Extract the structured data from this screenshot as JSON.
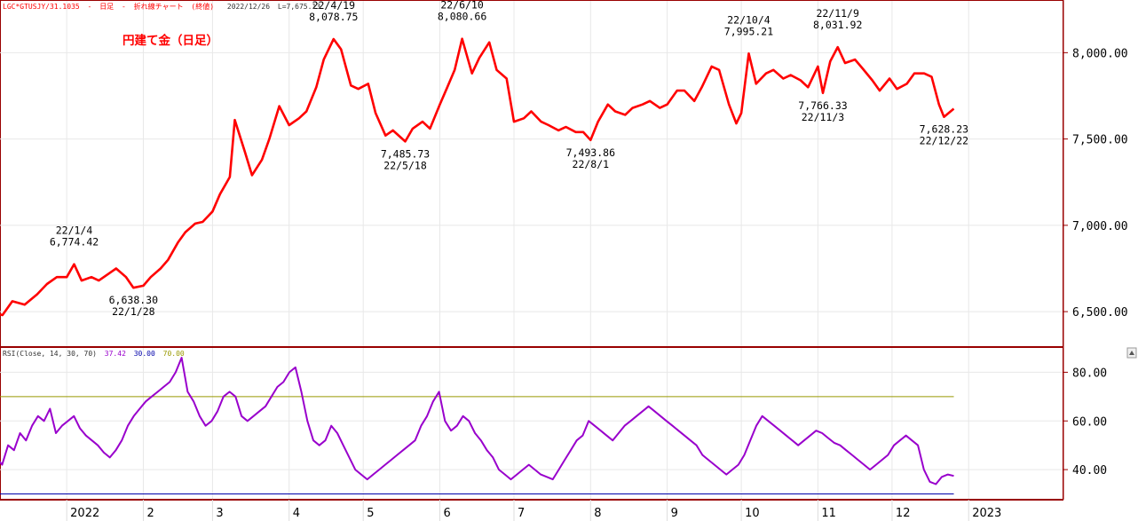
{
  "header": {
    "symbol": "LGC*GTUSJY/31.1035",
    "sep1": "-",
    "period": "日足",
    "sep2": "-",
    "chart_kind": "折れ線チャート",
    "mode": "(終値)",
    "date": "2022/12/26",
    "last": "L=7,675.13"
  },
  "rsi_header": {
    "label": "RSI(Close, 14, 30, 70)",
    "value": "37.42",
    "low": "30.00",
    "high": "70.00"
  },
  "colors": {
    "price_line": "#ff0000",
    "rsi_line": "#9900cc",
    "rsi_high_line": "#999900",
    "rsi_low_line": "#0000aa",
    "frame": "#990000",
    "grid": "#e8e8e8",
    "title": "#ff0000"
  },
  "chart_data": [
    {
      "type": "line",
      "title": "円建て金（日足）",
      "ylabel": "",
      "xlabel": "",
      "ylim": [
        6300,
        8300
      ],
      "grid": true,
      "y_ticks": [
        "6,500.00",
        "7,000.00",
        "7,500.00",
        "8,000.00"
      ],
      "y_tick_values": [
        6500,
        7000,
        7500,
        8000
      ],
      "x_ticks": [
        "2022",
        "2",
        "3",
        "4",
        "5",
        "6",
        "7",
        "8",
        "9",
        "10",
        "11",
        "12",
        "2023"
      ],
      "x_tick_dates": [
        "2022-01-01",
        "2022-02-01",
        "2022-03-01",
        "2022-04-01",
        "2022-05-01",
        "2022-06-01",
        "2022-07-01",
        "2022-08-01",
        "2022-09-01",
        "2022-10-01",
        "2022-11-01",
        "2022-12-01",
        "2023-01-01"
      ],
      "series": [
        {
          "x": [
            "2021-12-01",
            "2021-12-06",
            "2021-12-10",
            "2021-12-15",
            "2021-12-20",
            "2021-12-24",
            "2021-12-28",
            "2022-01-01",
            "2022-01-04",
            "2022-01-07",
            "2022-01-11",
            "2022-01-14",
            "2022-01-18",
            "2022-01-21",
            "2022-01-25",
            "2022-01-28",
            "2022-02-01",
            "2022-02-04",
            "2022-02-08",
            "2022-02-11",
            "2022-02-15",
            "2022-02-18",
            "2022-02-22",
            "2022-02-25",
            "2022-03-01",
            "2022-03-04",
            "2022-03-08",
            "2022-03-10",
            "2022-03-14",
            "2022-03-17",
            "2022-03-21",
            "2022-03-24",
            "2022-03-28",
            "2022-04-01",
            "2022-04-05",
            "2022-04-08",
            "2022-04-12",
            "2022-04-15",
            "2022-04-19",
            "2022-04-22",
            "2022-04-26",
            "2022-04-29",
            "2022-05-03",
            "2022-05-06",
            "2022-05-10",
            "2022-05-13",
            "2022-05-18",
            "2022-05-21",
            "2022-05-25",
            "2022-05-28",
            "2022-06-01",
            "2022-06-04",
            "2022-06-07",
            "2022-06-10",
            "2022-06-14",
            "2022-06-17",
            "2022-06-21",
            "2022-06-24",
            "2022-06-28",
            "2022-07-01",
            "2022-07-05",
            "2022-07-08",
            "2022-07-12",
            "2022-07-15",
            "2022-07-19",
            "2022-07-22",
            "2022-07-26",
            "2022-07-29",
            "2022-08-01",
            "2022-08-04",
            "2022-08-08",
            "2022-08-11",
            "2022-08-15",
            "2022-08-18",
            "2022-08-22",
            "2022-08-25",
            "2022-08-29",
            "2022-09-01",
            "2022-09-05",
            "2022-09-08",
            "2022-09-12",
            "2022-09-15",
            "2022-09-19",
            "2022-09-22",
            "2022-09-26",
            "2022-09-29",
            "2022-10-01",
            "2022-10-04",
            "2022-10-07",
            "2022-10-11",
            "2022-10-14",
            "2022-10-18",
            "2022-10-21",
            "2022-10-25",
            "2022-10-28",
            "2022-11-01",
            "2022-11-03",
            "2022-11-06",
            "2022-11-09",
            "2022-11-12",
            "2022-11-16",
            "2022-11-19",
            "2022-11-23",
            "2022-11-26",
            "2022-11-30",
            "2022-12-03",
            "2022-12-07",
            "2022-12-10",
            "2022-12-14",
            "2022-12-17",
            "2022-12-20",
            "2022-12-22",
            "2022-12-26"
          ],
          "y": [
            6500,
            6480,
            6560,
            6540,
            6600,
            6660,
            6700,
            6700,
            6774.42,
            6680,
            6700,
            6680,
            6720,
            6750,
            6700,
            6638.3,
            6650,
            6700,
            6750,
            6800,
            6900,
            6960,
            7010,
            7020,
            7080,
            7180,
            7280,
            7610,
            7430,
            7290,
            7380,
            7500,
            7690,
            7580,
            7620,
            7660,
            7800,
            7960,
            8078.75,
            8020,
            7810,
            7790,
            7820,
            7650,
            7520,
            7550,
            7485.73,
            7560,
            7600,
            7560,
            7700,
            7800,
            7900,
            8080.66,
            7880,
            7970,
            8060,
            7900,
            7850,
            7600,
            7620,
            7660,
            7600,
            7580,
            7550,
            7570,
            7540,
            7540,
            7493.86,
            7600,
            7700,
            7660,
            7640,
            7680,
            7700,
            7720,
            7680,
            7700,
            7780,
            7780,
            7720,
            7800,
            7920,
            7900,
            7700,
            7590,
            7650,
            7995.21,
            7820,
            7880,
            7900,
            7850,
            7870,
            7840,
            7800,
            7920,
            7766.33,
            7950,
            8031.92,
            7940,
            7960,
            7910,
            7840,
            7780,
            7850,
            7790,
            7820,
            7880,
            7880,
            7860,
            7700,
            7628.23,
            7675.13
          ]
        }
      ],
      "annotations": [
        {
          "date": "22/1/4",
          "value": "6,774.42",
          "position": "above"
        },
        {
          "date": "22/1/28",
          "value": "6,638.30",
          "position": "below"
        },
        {
          "date": "22/4/19",
          "value": "8,078.75",
          "position": "above"
        },
        {
          "date": "22/5/18",
          "value": "7,485.73",
          "position": "below"
        },
        {
          "date": "22/6/10",
          "value": "8,080.66",
          "position": "above"
        },
        {
          "date": "22/8/1",
          "value": "7,493.86",
          "position": "below"
        },
        {
          "date": "22/10/4",
          "value": "7,995.21",
          "position": "above"
        },
        {
          "date": "22/11/3",
          "value": "7,766.33",
          "position": "below"
        },
        {
          "date": "22/11/9",
          "value": "8,031.92",
          "position": "above"
        },
        {
          "date": "22/12/22",
          "value": "7,628.23",
          "position": "below"
        }
      ]
    },
    {
      "type": "line",
      "title": "",
      "ylim": [
        28,
        90
      ],
      "grid": true,
      "y_ticks": [
        "40.00",
        "60.00",
        "80.00"
      ],
      "y_tick_values": [
        40,
        60,
        80
      ],
      "reference_lines": [
        30,
        70
      ],
      "series": [
        {
          "y": [
            40,
            45,
            42,
            50,
            48,
            55,
            52,
            58,
            62,
            60,
            65,
            55,
            58,
            60,
            62,
            57,
            54,
            52,
            50,
            47,
            45,
            48,
            52,
            58,
            62,
            65,
            68,
            70,
            72,
            74,
            76,
            80,
            86,
            72,
            68,
            62,
            58,
            60,
            64,
            70,
            72,
            70,
            62,
            60,
            62,
            64,
            66,
            70,
            74,
            76,
            80,
            82,
            72,
            60,
            52,
            50,
            52,
            58,
            55,
            50,
            45,
            40,
            38,
            36,
            38,
            40,
            42,
            44,
            46,
            48,
            50,
            52,
            58,
            62,
            68,
            72,
            60,
            56,
            58,
            62,
            60,
            55,
            52,
            48,
            45,
            40,
            38,
            36,
            38,
            40,
            42,
            40,
            38,
            37,
            36,
            40,
            44,
            48,
            52,
            54,
            60,
            58,
            56,
            54,
            52,
            55,
            58,
            60,
            62,
            64,
            66,
            64,
            62,
            60,
            58,
            56,
            54,
            52,
            50,
            46,
            44,
            42,
            40,
            38,
            40,
            42,
            46,
            52,
            58,
            62,
            60,
            58,
            56,
            54,
            52,
            50,
            52,
            54,
            56,
            55,
            53,
            51,
            50,
            48,
            46,
            44,
            42,
            40,
            42,
            44,
            46,
            50,
            52,
            54,
            52,
            50,
            40,
            35,
            34,
            37,
            38,
            37.42
          ]
        }
      ]
    }
  ]
}
